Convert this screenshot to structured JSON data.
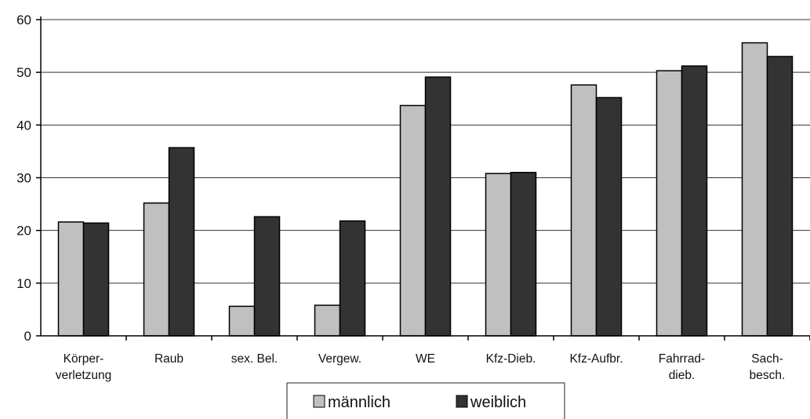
{
  "chart_data": {
    "type": "bar",
    "categories": [
      [
        "Körper-",
        "verletzung"
      ],
      [
        "Raub"
      ],
      [
        "sex. Bel."
      ],
      [
        "Vergew."
      ],
      [
        "WE"
      ],
      [
        "Kfz-Dieb."
      ],
      [
        "Kfz-Aufbr."
      ],
      [
        "Fahrrad-",
        "dieb."
      ],
      [
        "Sach-",
        "besch."
      ]
    ],
    "series": [
      {
        "name": "männlich",
        "values": [
          21.6,
          25.2,
          5.6,
          5.8,
          43.7,
          30.8,
          47.6,
          50.3,
          55.6
        ],
        "color": "#c0c0c0"
      },
      {
        "name": "weiblich",
        "values": [
          21.4,
          35.7,
          22.6,
          21.8,
          49.1,
          31.0,
          45.2,
          51.2,
          53.0
        ],
        "color": "#333333"
      }
    ],
    "yticks": [
      0,
      10,
      20,
      30,
      40,
      50,
      60
    ],
    "ylim": [
      0,
      60
    ],
    "grid": true,
    "legend_position": "bottom"
  }
}
